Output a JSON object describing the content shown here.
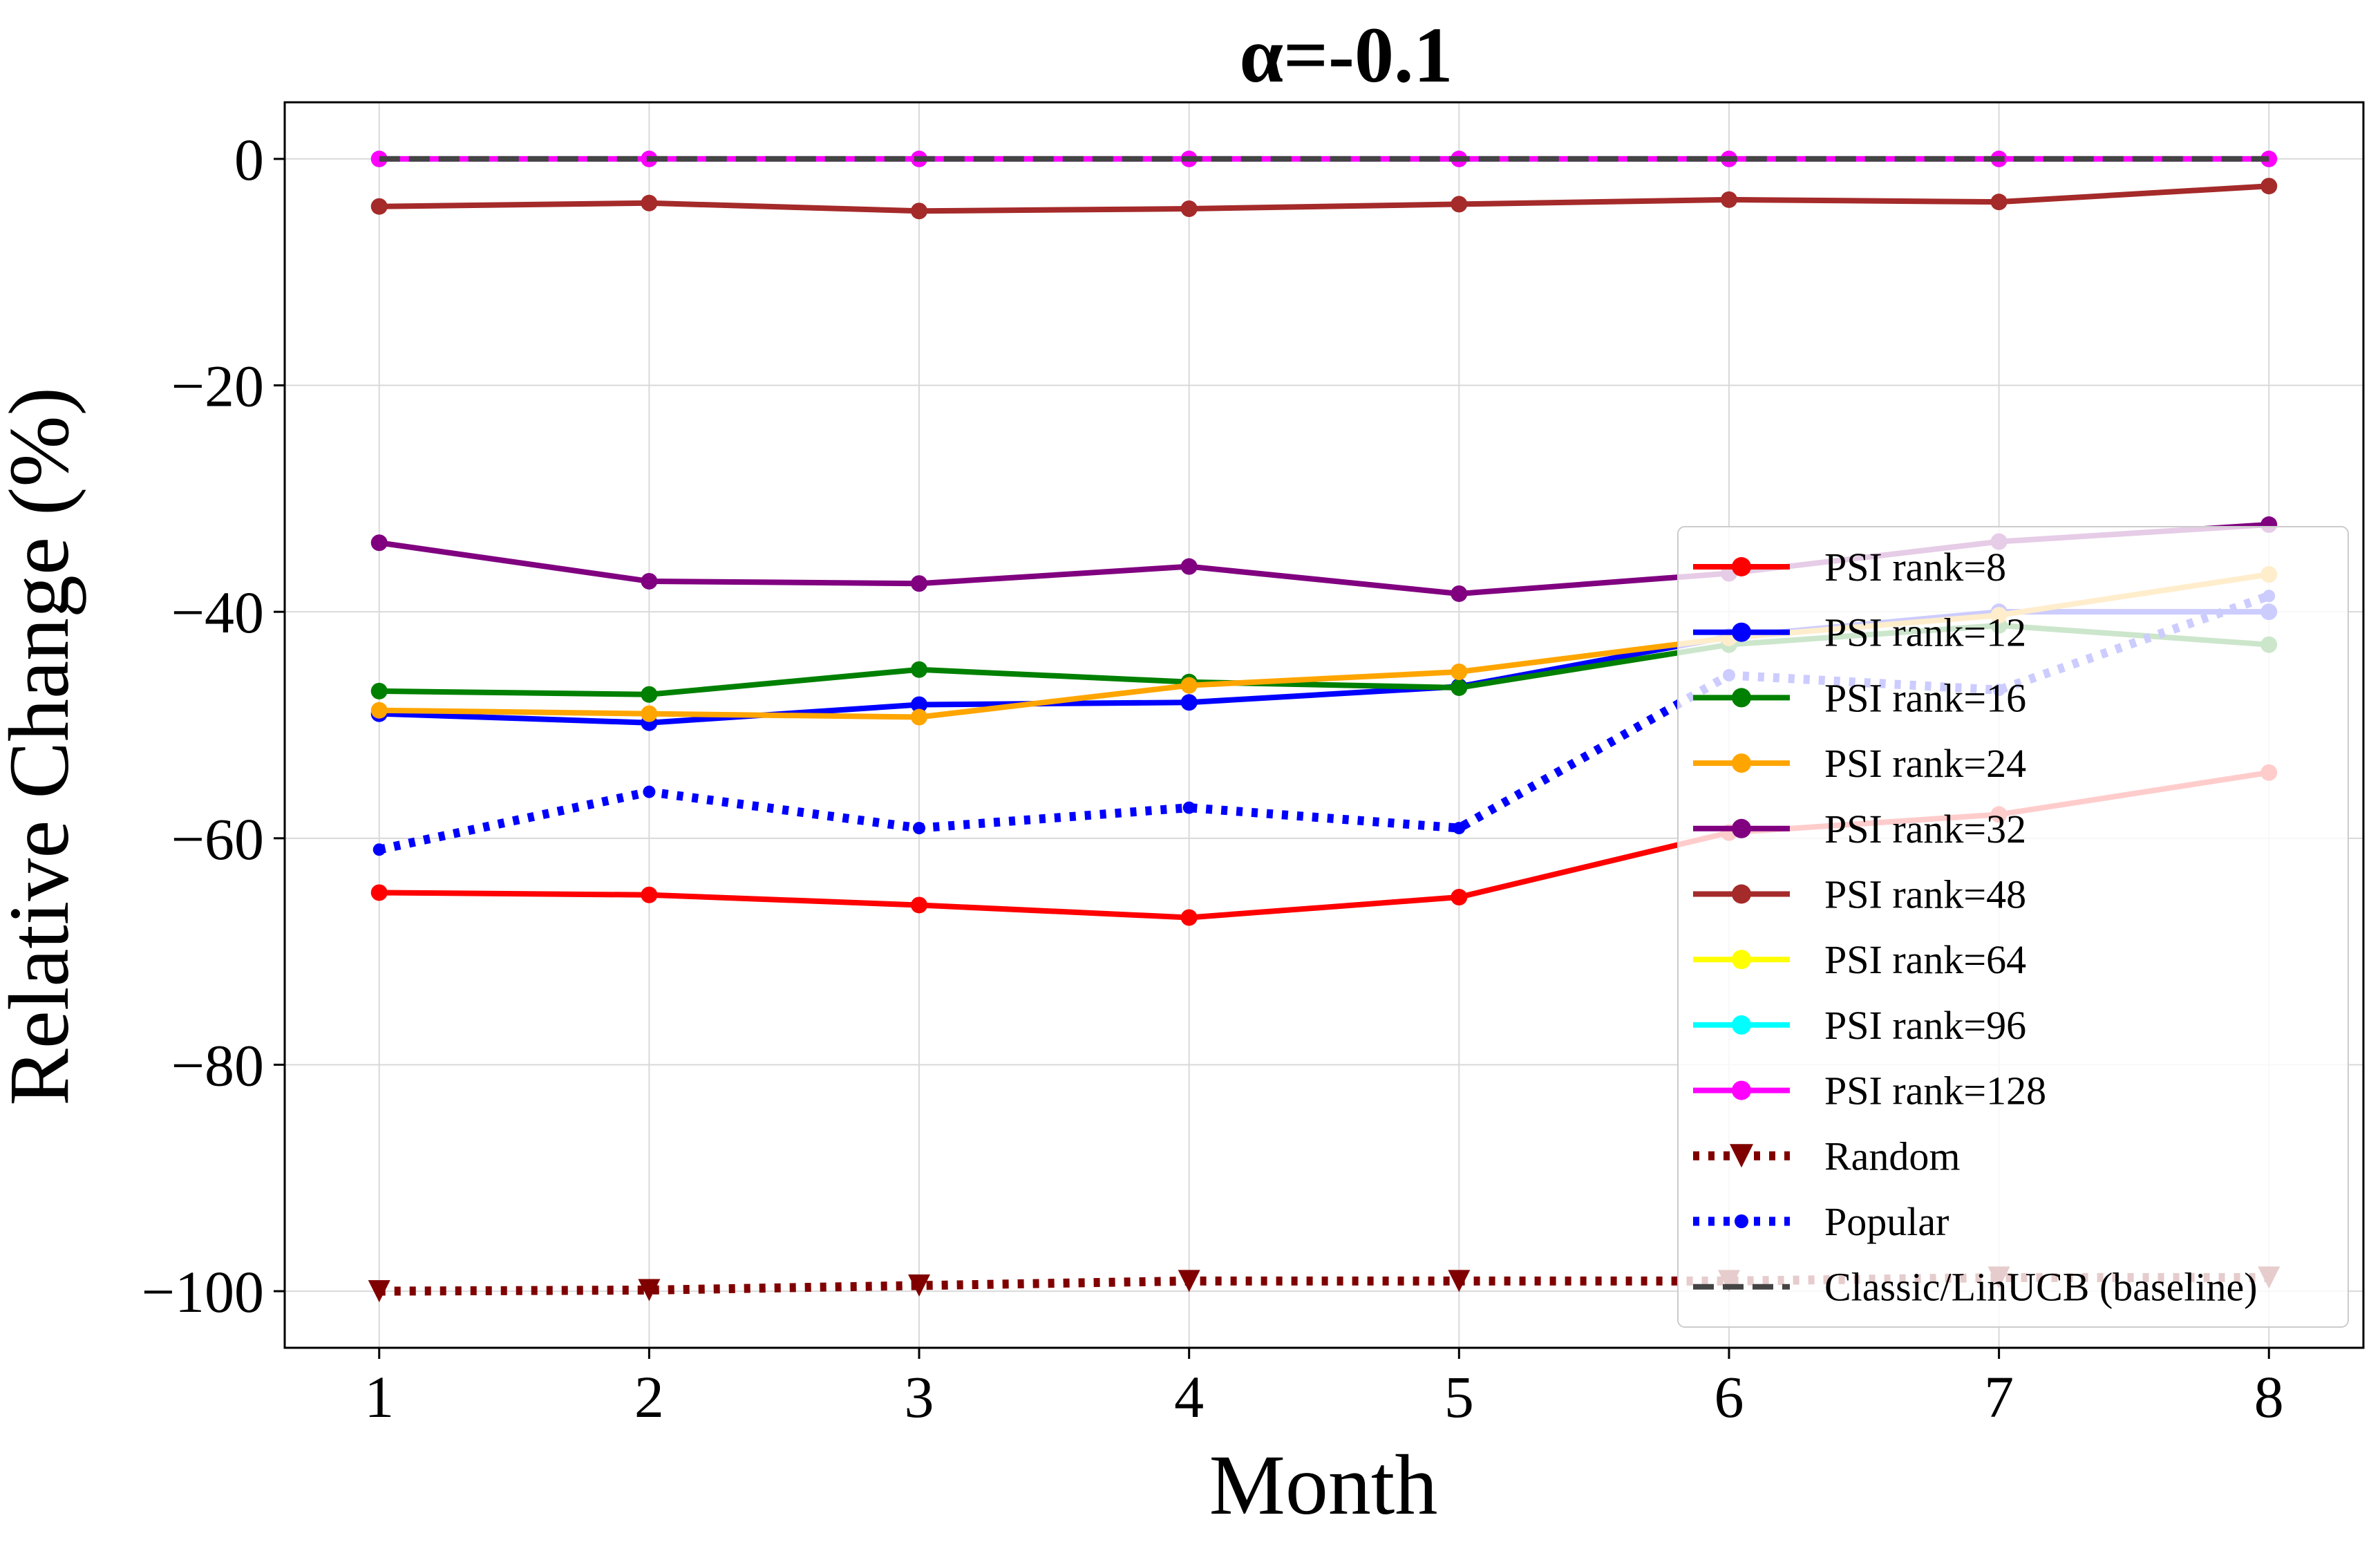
{
  "chart_data": {
    "type": "line",
    "title": "α=-0.1",
    "xlabel": "Month",
    "ylabel": "Relative Change (%)",
    "x": [
      1,
      2,
      3,
      4,
      5,
      6,
      7,
      8
    ],
    "xticks": [
      "1",
      "2",
      "3",
      "4",
      "5",
      "6",
      "7",
      "8"
    ],
    "xlim": [
      0.65,
      8.35
    ],
    "yticks": [
      "0",
      "−20",
      "−40",
      "−60",
      "−80",
      "−100"
    ],
    "ytick_values": [
      0,
      -20,
      -40,
      -60,
      -80,
      -100
    ],
    "ylim": [
      -105,
      5
    ],
    "grid": true,
    "legend_position": "lower-right",
    "series": [
      {
        "name": "PSI rank=8",
        "color": "#ff0000",
        "line_style": "solid",
        "marker": "circle",
        "values": [
          -64.8,
          -65.0,
          -65.9,
          -67.0,
          -65.2,
          -59.5,
          -57.9,
          -54.2
        ]
      },
      {
        "name": "PSI rank=12",
        "color": "#0000ff",
        "line_style": "solid",
        "marker": "circle",
        "values": [
          -49.0,
          -49.8,
          -48.2,
          -48.0,
          -46.6,
          -42.2,
          -40.0,
          -40.0
        ]
      },
      {
        "name": "PSI rank=16",
        "color": "#008000",
        "line_style": "solid",
        "marker": "circle",
        "values": [
          -47.0,
          -47.3,
          -45.1,
          -46.2,
          -46.7,
          -42.9,
          -41.2,
          -42.9
        ]
      },
      {
        "name": "PSI rank=24",
        "color": "#ffa500",
        "line_style": "solid",
        "marker": "circle",
        "values": [
          -48.7,
          -49.0,
          -49.3,
          -46.5,
          -45.3,
          -42.3,
          -40.3,
          -36.7
        ]
      },
      {
        "name": "PSI rank=32",
        "color": "#800080",
        "line_style": "solid",
        "marker": "circle",
        "values": [
          -33.9,
          -37.3,
          -37.5,
          -36.0,
          -38.4,
          -36.6,
          -33.8,
          -32.3
        ]
      },
      {
        "name": "PSI rank=48",
        "color": "#a52a2a",
        "line_style": "solid",
        "marker": "circle",
        "values": [
          -4.2,
          -3.9,
          -4.6,
          -4.4,
          -4.0,
          -3.6,
          -3.8,
          -2.4
        ]
      },
      {
        "name": "PSI rank=64",
        "color": "#ffff00",
        "line_style": "solid",
        "marker": "circle",
        "values": [
          0,
          0,
          0,
          0,
          0,
          0,
          0,
          0
        ]
      },
      {
        "name": "PSI rank=96",
        "color": "#00ffff",
        "line_style": "solid",
        "marker": "circle",
        "values": [
          0,
          0,
          0,
          0,
          0,
          0,
          0,
          0
        ]
      },
      {
        "name": "PSI rank=128",
        "color": "#ff00ff",
        "line_style": "solid",
        "marker": "circle",
        "values": [
          0,
          0,
          0,
          0,
          0,
          0,
          0,
          0
        ]
      },
      {
        "name": "Random",
        "color": "#800000",
        "line_style": "dotted",
        "marker": "triangle-down",
        "values": [
          -100.0,
          -99.9,
          -99.5,
          -99.1,
          -99.1,
          -99.1,
          -98.8,
          -98.8
        ]
      },
      {
        "name": "Popular",
        "color": "#0000ff",
        "line_style": "dotted",
        "marker": "circle-small",
        "values": [
          -61.0,
          -55.9,
          -59.1,
          -57.3,
          -59.1,
          -45.6,
          -46.9,
          -38.6
        ]
      },
      {
        "name": "Classic/LinUCB (baseline)",
        "color": "#444444",
        "line_style": "dashed",
        "marker": "none",
        "values": [
          0,
          0,
          0,
          0,
          0,
          0,
          0,
          0
        ]
      }
    ]
  }
}
